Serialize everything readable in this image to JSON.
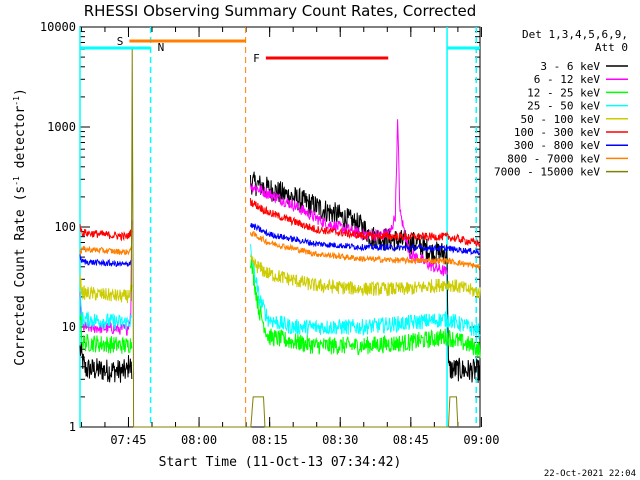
{
  "chart_data": {
    "type": "line",
    "title": "RHESSI Observing Summary Count Rates, Corrected",
    "xlabel": "Start Time (11-Oct-13 07:34:42)",
    "ylabel_main": "Corrected Count Rate (s",
    "ylabel_exp1": "-1",
    "ylabel_mid": " detector",
    "ylabel_exp2": "-1",
    "ylabel_end": ")",
    "yscale": "log",
    "ylim": [
      1,
      10000
    ],
    "xlim_minutes": [
      0,
      85
    ],
    "x_ticks": [
      {
        "label": "07:45",
        "min": 10.3
      },
      {
        "label": "08:00",
        "min": 25.3
      },
      {
        "label": "08:15",
        "min": 40.3
      },
      {
        "label": "08:30",
        "min": 55.3
      },
      {
        "label": "08:45",
        "min": 70.3
      },
      {
        "label": "09:00",
        "min": 85.3
      }
    ],
    "y_ticks": [
      {
        "label": "1",
        "value": 1
      },
      {
        "label": "10",
        "value": 10
      },
      {
        "label": "100",
        "value": 100
      },
      {
        "label": "1000",
        "value": 1000
      },
      {
        "label": "10000",
        "value": 10000
      }
    ],
    "legend_header": [
      "Det 1,3,4,5,6,9,",
      "Att 0"
    ],
    "series": [
      {
        "name": "3 - 6 keV",
        "color": "#000000",
        "knots": [
          [
            0,
            6
          ],
          [
            1,
            3.8
          ],
          [
            10,
            3.6
          ],
          [
            10.5,
            4.5
          ],
          [
            11,
            3.5
          ],
          [
            36,
            0
          ],
          [
            36.2,
            280
          ],
          [
            45,
            200
          ],
          [
            55,
            130
          ],
          [
            60,
            100
          ],
          [
            62,
            80
          ],
          [
            66,
            75
          ],
          [
            70,
            70
          ],
          [
            72,
            68
          ],
          [
            73,
            62
          ],
          [
            75,
            55
          ],
          [
            78,
            55
          ],
          [
            78.3,
            3.8
          ],
          [
            85,
            3.6
          ]
        ]
      },
      {
        "name": "6 - 12 keV",
        "color": "#ff00ff",
        "knots": [
          [
            0,
            20
          ],
          [
            0.5,
            10
          ],
          [
            10,
            9.5
          ],
          [
            10.8,
            13
          ],
          [
            11,
            130
          ],
          [
            36,
            0
          ],
          [
            36.2,
            260
          ],
          [
            45,
            170
          ],
          [
            52,
            110
          ],
          [
            60,
            85
          ],
          [
            64,
            82
          ],
          [
            66,
            90
          ],
          [
            67,
            130
          ],
          [
            67.5,
            1150
          ],
          [
            68,
            140
          ],
          [
            70,
            55
          ],
          [
            75,
            40
          ],
          [
            78,
            35
          ]
        ]
      },
      {
        "name": "12 - 25 keV",
        "color": "#00ff00",
        "knots": [
          [
            0,
            15
          ],
          [
            0.5,
            7
          ],
          [
            10,
            6.5
          ],
          [
            11,
            7
          ],
          [
            36,
            0
          ],
          [
            36.2,
            50
          ],
          [
            38,
            15
          ],
          [
            40,
            8
          ],
          [
            50,
            6.5
          ],
          [
            60,
            6.5
          ],
          [
            70,
            7
          ],
          [
            78,
            8
          ],
          [
            85,
            6
          ]
        ]
      },
      {
        "name": "25 - 50 keV",
        "color": "#00ffff",
        "knots": [
          [
            0,
            20
          ],
          [
            0.5,
            12
          ],
          [
            10,
            11
          ],
          [
            11,
            12
          ],
          [
            36,
            0
          ],
          [
            36.2,
            60
          ],
          [
            38,
            20
          ],
          [
            40,
            12
          ],
          [
            45,
            10
          ],
          [
            60,
            10
          ],
          [
            70,
            11
          ],
          [
            78,
            12
          ],
          [
            85,
            9
          ]
        ]
      },
      {
        "name": "50 - 100 keV",
        "color": "#cccc00",
        "knots": [
          [
            0,
            30
          ],
          [
            0.5,
            22
          ],
          [
            10,
            20
          ],
          [
            11,
            24
          ],
          [
            36,
            0
          ],
          [
            36.2,
            45
          ],
          [
            40,
            34
          ],
          [
            50,
            26
          ],
          [
            60,
            24
          ],
          [
            70,
            24
          ],
          [
            78,
            27
          ],
          [
            85,
            22
          ]
        ]
      },
      {
        "name": "100 - 300 keV",
        "color": "#ff0000",
        "knots": [
          [
            0,
            100
          ],
          [
            0.5,
            88
          ],
          [
            10,
            80
          ],
          [
            11,
            90
          ],
          [
            36,
            0
          ],
          [
            36.2,
            180
          ],
          [
            40,
            140
          ],
          [
            50,
            95
          ],
          [
            60,
            82
          ],
          [
            70,
            80
          ],
          [
            78,
            80
          ],
          [
            85,
            68
          ]
        ]
      },
      {
        "name": "300 - 800 keV",
        "color": "#0000ff",
        "knots": [
          [
            0,
            50
          ],
          [
            0.5,
            45
          ],
          [
            10,
            42
          ],
          [
            11,
            46
          ],
          [
            36,
            0
          ],
          [
            36.2,
            105
          ],
          [
            40,
            85
          ],
          [
            50,
            68
          ],
          [
            60,
            63
          ],
          [
            70,
            62
          ],
          [
            78,
            61
          ],
          [
            85,
            56
          ]
        ]
      },
      {
        "name": "800 - 7000 keV",
        "color": "#ff8000",
        "knots": [
          [
            0,
            55
          ],
          [
            0.5,
            60
          ],
          [
            10,
            56
          ],
          [
            11,
            60
          ],
          [
            36,
            0
          ],
          [
            36.2,
            88
          ],
          [
            40,
            70
          ],
          [
            50,
            54
          ],
          [
            60,
            48
          ],
          [
            70,
            46
          ],
          [
            78,
            46
          ],
          [
            85,
            40
          ]
        ]
      },
      {
        "name": "7000 - 15000 keV",
        "color": "#808000",
        "knots": [
          [
            10.8,
            1
          ],
          [
            11.1,
            6000
          ],
          [
            11.4,
            1
          ],
          [
            36.3,
            1
          ],
          [
            36.8,
            2
          ],
          [
            39,
            2
          ],
          [
            39.3,
            1
          ],
          [
            78,
            1
          ],
          [
            78.3,
            1
          ],
          [
            78.6,
            2
          ],
          [
            80,
            2
          ],
          [
            80.3,
            1
          ]
        ]
      }
    ],
    "markers": [
      {
        "label": "S",
        "color": "#ff8000"
      },
      {
        "label": "N",
        "color": "#00ffff"
      },
      {
        "label": "F",
        "color": "#ff0000"
      }
    ],
    "footer_date": "22-Oct-2021 22:04"
  }
}
